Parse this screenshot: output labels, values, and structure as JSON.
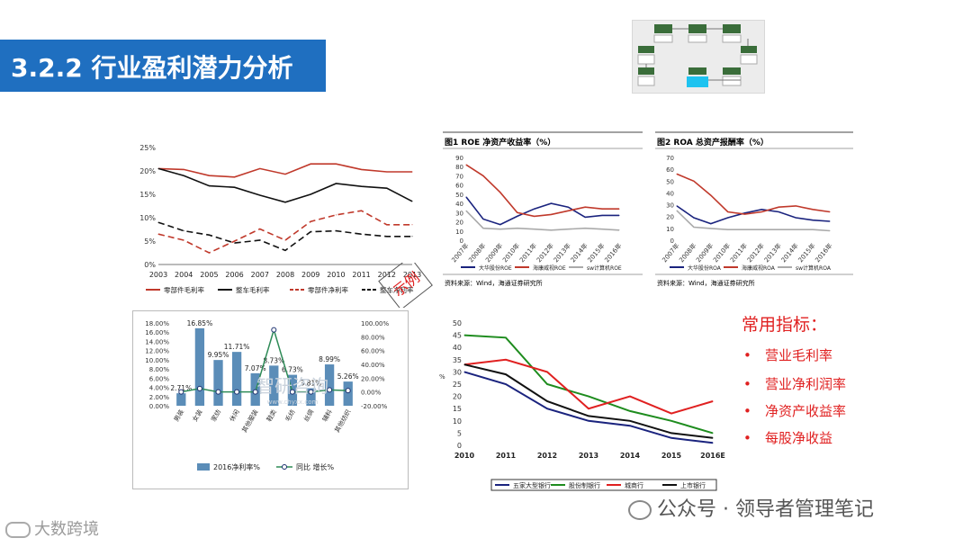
{
  "header": {
    "title": "3.2.2 行业盈利潜力分析"
  },
  "callout": {
    "title": "常用指标：",
    "items": [
      "营业毛利率",
      "营业净利润率",
      "净资产收益率",
      "每股净收益"
    ]
  },
  "stamp": {
    "label": "示例"
  },
  "watermark": {
    "text": "智研咨询",
    "url": "www.chyxx.com"
  },
  "footer": {
    "brand": "公众号 · 领导者管理笔记",
    "logo_text": "大数跨境"
  },
  "colors": {
    "accent": "#1f6fc0",
    "red": "#c0392b",
    "callout": "#e02020"
  },
  "chart_data": [
    {
      "type": "line",
      "x": [
        "2003",
        "2004",
        "2005",
        "2006",
        "2007",
        "2008",
        "2009",
        "2010",
        "2011",
        "2012",
        "2013"
      ],
      "ylim": [
        0,
        25
      ],
      "yticks": [
        "0%",
        "5%",
        "10%",
        "15%",
        "20%",
        "25%"
      ],
      "series": [
        {
          "name": "零部件毛利率",
          "color": "#c0392b",
          "dash": "solid",
          "values": [
            20.5,
            20.3,
            19,
            18.7,
            20.5,
            19.3,
            21.5,
            21.5,
            20.3,
            19.8,
            19.8
          ]
        },
        {
          "name": "整车毛利率",
          "color": "#111111",
          "dash": "solid",
          "values": [
            20.5,
            19,
            16.8,
            16.5,
            14.8,
            13.3,
            15,
            17.3,
            16.7,
            16.3,
            13.5
          ]
        },
        {
          "name": "零部件净利率",
          "color": "#c0392b",
          "dash": "dashed",
          "values": [
            6.5,
            5.2,
            2.5,
            5,
            7.6,
            5.2,
            9.2,
            10.6,
            11.5,
            8.5,
            8.5
          ]
        },
        {
          "name": "整车净利率",
          "color": "#111111",
          "dash": "dashed",
          "values": [
            9,
            7.2,
            6.3,
            4.6,
            5.2,
            3,
            7,
            7.2,
            6.5,
            6,
            6
          ]
        }
      ]
    },
    {
      "type": "line",
      "title": "图1 ROE 净资产收益率（%）",
      "x": [
        "2007年",
        "2008年",
        "2009年",
        "2010年",
        "2011年",
        "2012年",
        "2013年",
        "2014年",
        "2015年",
        "2016年"
      ],
      "ylim": [
        0,
        90
      ],
      "yticks": [
        "0",
        "10",
        "20",
        "30",
        "40",
        "50",
        "60",
        "70",
        "80",
        "90"
      ],
      "source": "资料来源：Wind，海通证券研究所",
      "series": [
        {
          "name": "大华股份ROE",
          "color": "#1a237e",
          "values": [
            47,
            23,
            17,
            26,
            34,
            40,
            36,
            25,
            27,
            27
          ]
        },
        {
          "name": "海康威视ROE",
          "color": "#c0392b",
          "values": [
            82,
            70,
            52,
            30,
            26,
            28,
            32,
            36,
            34,
            34
          ]
        },
        {
          "name": "sw计算机ROE",
          "color": "#aaaaaa",
          "values": [
            32,
            13,
            12,
            13,
            12,
            11,
            12,
            13,
            12,
            11
          ]
        }
      ]
    },
    {
      "type": "line",
      "title": "图2 ROA 总资产报酬率（%）",
      "x": [
        "2007年",
        "2008年",
        "2009年",
        "2010年",
        "2011年",
        "2012年",
        "2013年",
        "2014年",
        "2015年",
        "2016年"
      ],
      "ylim": [
        0,
        70
      ],
      "yticks": [
        "0",
        "10",
        "20",
        "30",
        "40",
        "50",
        "60",
        "70"
      ],
      "source": "资料来源：Wind，海通证券研究所",
      "series": [
        {
          "name": "大华股份ROA",
          "color": "#1a237e",
          "values": [
            29,
            19,
            14,
            19,
            23,
            26,
            24,
            19,
            17,
            16
          ]
        },
        {
          "name": "海康威视ROA",
          "color": "#c0392b",
          "values": [
            56,
            50,
            38,
            24,
            22,
            24,
            28,
            29,
            26,
            24
          ]
        },
        {
          "name": "sw计算机ROA",
          "color": "#aaaaaa",
          "values": [
            25,
            11,
            10,
            9,
            9,
            9,
            9,
            9,
            9,
            8
          ]
        }
      ]
    },
    {
      "type": "bar",
      "categories": [
        "男装",
        "女装",
        "家纺",
        "休闲",
        "其他服装",
        "鞋类",
        "毛纺",
        "丝绸",
        "辅料",
        "其他纺织"
      ],
      "series": [
        {
          "name": "2016净利率%",
          "color": "#5b8db8",
          "values": [
            2.71,
            16.85,
            9.95,
            11.71,
            7.07,
            8.73,
            6.73,
            3.81,
            8.99,
            5.26
          ]
        },
        {
          "name": "同比 增长%",
          "color": "#2e8b57",
          "values": [
            0,
            5,
            0,
            0,
            0,
            90,
            0,
            0,
            3,
            2
          ]
        }
      ],
      "ylim": [
        0,
        18
      ],
      "y2lim": [
        -20,
        100
      ],
      "yticks": [
        "0.00%",
        "2.00%",
        "4.00%",
        "6.00%",
        "8.00%",
        "10.00%",
        "12.00%",
        "14.00%",
        "16.00%",
        "18.00%"
      ],
      "y2ticks": [
        "-20.00%",
        "0.00%",
        "20.00%",
        "40.00%",
        "60.00%",
        "80.00%",
        "100.00%"
      ],
      "labels": [
        "2.71%",
        "16.85%",
        "9.95%",
        "11.71%",
        "7.07%",
        "8.73%",
        "6.73%",
        "3.81%",
        "8.99%",
        "5.26%"
      ]
    },
    {
      "type": "line",
      "x": [
        "2010",
        "2011",
        "2012",
        "2013",
        "2014",
        "2015",
        "2016E"
      ],
      "ylim": [
        0,
        50
      ],
      "yticks": [
        "0",
        "5",
        "10",
        "15",
        "20",
        "25",
        "30",
        "35",
        "40",
        "45",
        "50"
      ],
      "ylabel": "%",
      "series": [
        {
          "name": "五家大型银行",
          "color": "#1a237e",
          "values": [
            30,
            25,
            15,
            10,
            8,
            3,
            1
          ]
        },
        {
          "name": "股份制银行",
          "color": "#1e8c1e",
          "values": [
            45,
            44,
            25,
            20,
            14,
            10,
            5
          ]
        },
        {
          "name": "城商行",
          "color": "#e02020",
          "values": [
            33,
            35,
            30,
            15,
            20,
            13,
            18
          ]
        },
        {
          "name": "上市银行",
          "color": "#111111",
          "values": [
            33,
            29,
            18,
            12,
            10,
            5,
            3
          ]
        }
      ]
    }
  ]
}
